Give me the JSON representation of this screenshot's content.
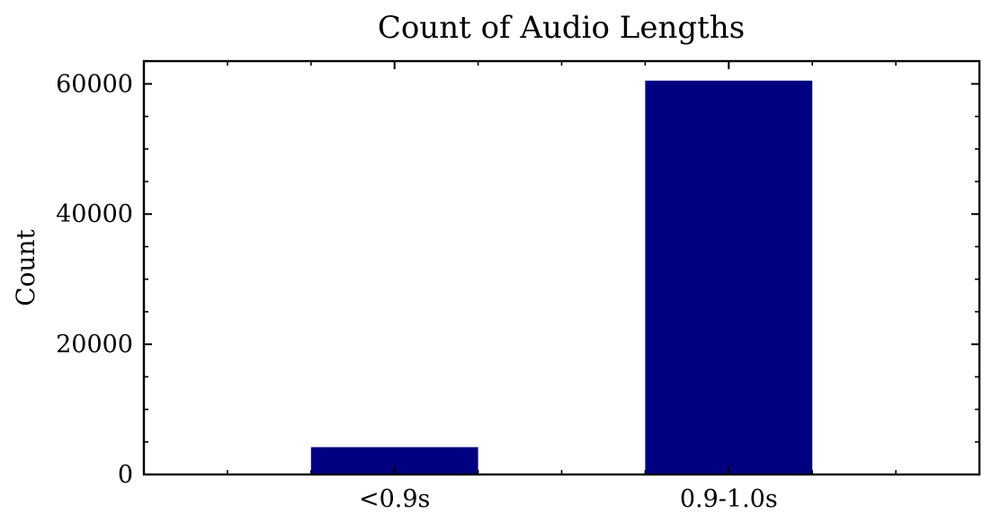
{
  "chart_data": {
    "type": "bar",
    "title": "Count of Audio Lengths",
    "xlabel": "",
    "ylabel": "Count",
    "categories": [
      "<0.9s",
      "0.9-1.0s"
    ],
    "values": [
      4200,
      60500
    ],
    "ylim": [
      0,
      63500
    ],
    "yticks": [
      0,
      20000,
      40000,
      60000
    ],
    "ytick_labels": [
      "0",
      "20000",
      "40000",
      "60000"
    ],
    "y_minor_step": 5000,
    "grid": false,
    "legend": "none",
    "bar_color": "#000080"
  }
}
